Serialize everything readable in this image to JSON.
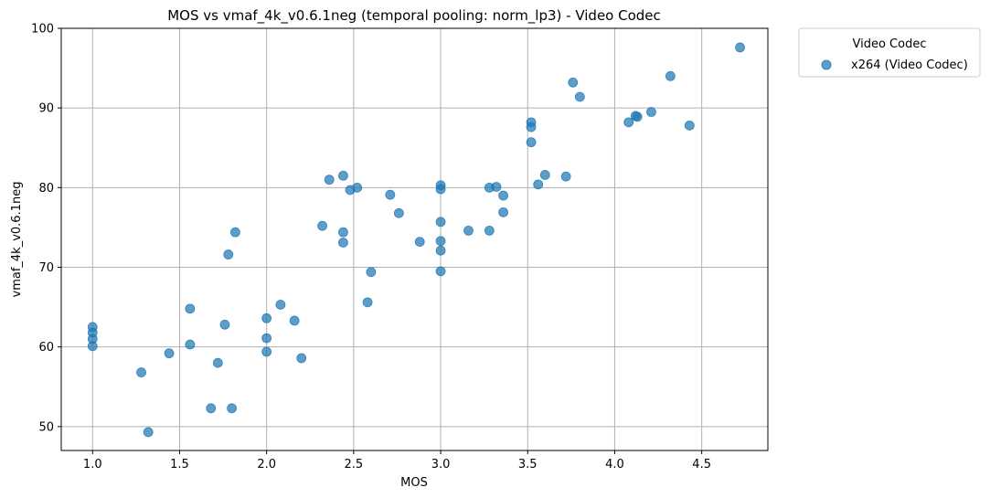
{
  "chart_data": {
    "type": "scatter",
    "title": "MOS vs vmaf_4k_v0.6.1neg (temporal pooling: norm_lp3) - Video Codec",
    "xlabel": "MOS",
    "ylabel": "vmaf_4k_v0.6.1neg",
    "xlim": [
      0.82,
      4.88
    ],
    "ylim": [
      47,
      100
    ],
    "xticks": [
      "1.0",
      "1.5",
      "2.0",
      "2.5",
      "3.0",
      "3.5",
      "4.0",
      "4.5"
    ],
    "yticks": [
      "50",
      "60",
      "70",
      "80",
      "90",
      "100"
    ],
    "grid": true,
    "legend": {
      "title": "Video Codec",
      "placement": "outside-top-right",
      "entries": [
        "x264 (Video Codec)"
      ]
    },
    "series": [
      {
        "name": "x264 (Video Codec)",
        "color": "#1f77b4",
        "points": [
          [
            1.0,
            62.5
          ],
          [
            1.0,
            61.8
          ],
          [
            1.0,
            61.0
          ],
          [
            1.0,
            60.1
          ],
          [
            1.28,
            56.8
          ],
          [
            1.32,
            49.3
          ],
          [
            1.44,
            59.2
          ],
          [
            1.56,
            64.8
          ],
          [
            1.56,
            60.3
          ],
          [
            1.68,
            52.3
          ],
          [
            1.72,
            58.0
          ],
          [
            1.76,
            62.8
          ],
          [
            1.78,
            71.6
          ],
          [
            1.8,
            52.3
          ],
          [
            1.82,
            74.4
          ],
          [
            2.0,
            63.6
          ],
          [
            2.0,
            61.1
          ],
          [
            2.0,
            59.4
          ],
          [
            2.08,
            65.3
          ],
          [
            2.16,
            63.3
          ],
          [
            2.2,
            58.6
          ],
          [
            2.32,
            75.2
          ],
          [
            2.36,
            81.0
          ],
          [
            2.44,
            81.5
          ],
          [
            2.44,
            74.4
          ],
          [
            2.44,
            73.1
          ],
          [
            2.48,
            79.7
          ],
          [
            2.52,
            80.0
          ],
          [
            2.58,
            65.6
          ],
          [
            2.6,
            69.4
          ],
          [
            2.71,
            79.1
          ],
          [
            2.76,
            76.8
          ],
          [
            2.88,
            73.2
          ],
          [
            3.0,
            80.3
          ],
          [
            3.0,
            79.8
          ],
          [
            3.0,
            75.7
          ],
          [
            3.0,
            73.3
          ],
          [
            3.0,
            72.1
          ],
          [
            3.0,
            69.5
          ],
          [
            3.16,
            74.6
          ],
          [
            3.28,
            80.0
          ],
          [
            3.28,
            74.6
          ],
          [
            3.32,
            80.1
          ],
          [
            3.36,
            79.0
          ],
          [
            3.36,
            76.9
          ],
          [
            3.52,
            88.2
          ],
          [
            3.52,
            87.6
          ],
          [
            3.52,
            85.7
          ],
          [
            3.56,
            80.4
          ],
          [
            3.6,
            81.6
          ],
          [
            3.72,
            81.4
          ],
          [
            3.76,
            93.2
          ],
          [
            3.8,
            91.4
          ],
          [
            4.08,
            88.2
          ],
          [
            4.12,
            89.0
          ],
          [
            4.13,
            88.9
          ],
          [
            4.21,
            89.5
          ],
          [
            4.32,
            94.0
          ],
          [
            4.43,
            87.8
          ],
          [
            4.72,
            97.6
          ]
        ]
      }
    ]
  }
}
